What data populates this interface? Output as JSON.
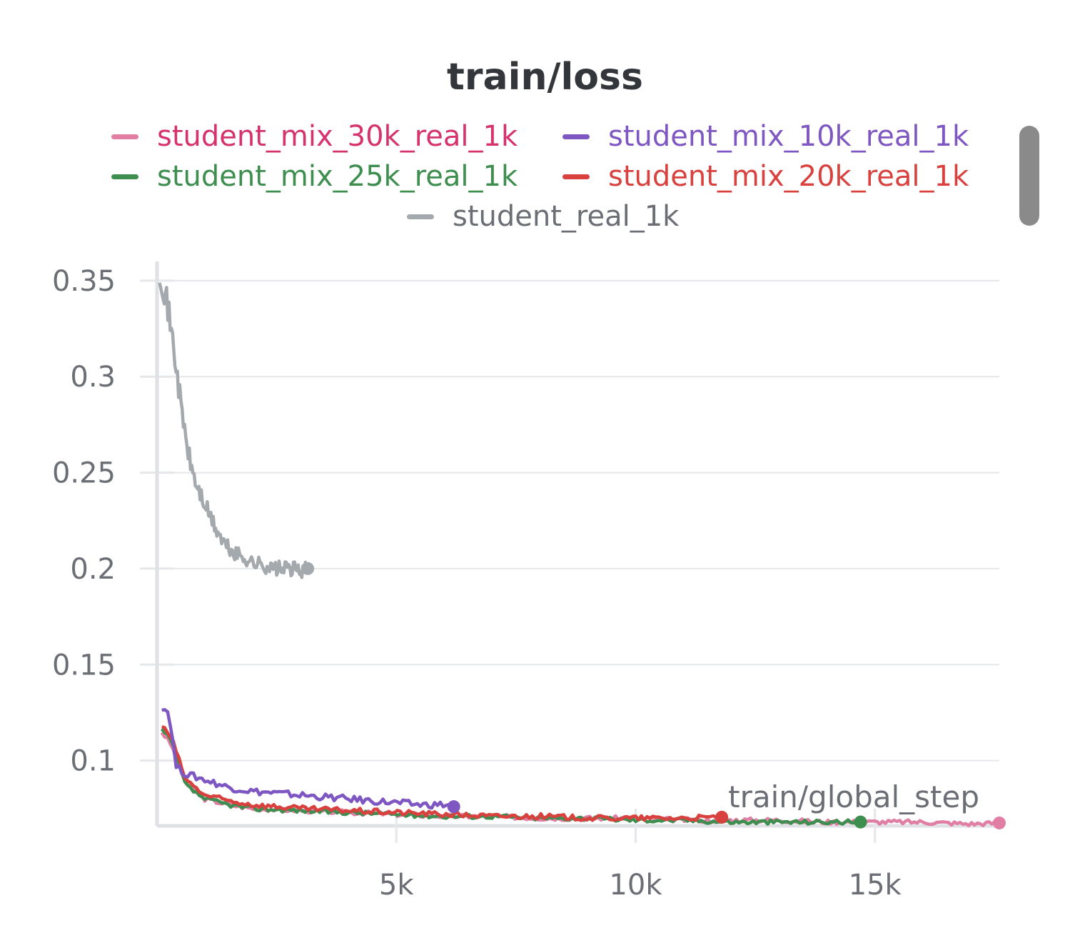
{
  "chart_data": {
    "type": "line",
    "title": "train/loss",
    "xlabel": "train/global_step",
    "ylabel": "",
    "xlim": [
      0,
      17600
    ],
    "ylim": [
      0.066,
      0.36
    ],
    "x_ticks": [
      5000,
      10000,
      15000
    ],
    "x_tick_labels": [
      "5k",
      "10k",
      "15k"
    ],
    "y_ticks": [
      0.1,
      0.15,
      0.2,
      0.25,
      0.3,
      0.35
    ],
    "y_tick_labels": [
      "0.1",
      "0.15",
      "0.2",
      "0.25",
      "0.3",
      "0.35"
    ],
    "grid": true,
    "legend_position": "top",
    "series": [
      {
        "name": "student_mix_30k_real_1k",
        "color": "#e07fa3",
        "label_color": "#d6336c",
        "x": [
          100,
          300,
          600,
          1000,
          1500,
          2000,
          3000,
          4000,
          5000,
          6000,
          7000,
          8000,
          9000,
          10000,
          11000,
          12000,
          13000,
          14000,
          15000,
          16000,
          17000,
          17600
        ],
        "y": [
          0.115,
          0.108,
          0.088,
          0.08,
          0.077,
          0.075,
          0.074,
          0.073,
          0.072,
          0.071,
          0.071,
          0.07,
          0.07,
          0.07,
          0.069,
          0.069,
          0.069,
          0.068,
          0.068,
          0.068,
          0.067,
          0.0675
        ]
      },
      {
        "name": "student_mix_10k_real_1k",
        "color": "#7e57c2",
        "label_color": "#7e57c2",
        "x": [
          100,
          250,
          400,
          600,
          1000,
          1500,
          2000,
          2500,
          3000,
          3500,
          4000,
          4500,
          5000,
          5500,
          6000,
          6200
        ],
        "y": [
          0.128,
          0.125,
          0.097,
          0.093,
          0.09,
          0.086,
          0.084,
          0.083,
          0.082,
          0.081,
          0.08,
          0.079,
          0.078,
          0.077,
          0.077,
          0.076
        ]
      },
      {
        "name": "student_mix_25k_real_1k",
        "color": "#3e8e50",
        "label_color": "#3e8e50",
        "x": [
          100,
          300,
          600,
          1000,
          1500,
          2000,
          3000,
          4000,
          5000,
          6000,
          7000,
          8000,
          9000,
          10000,
          11000,
          12000,
          13000,
          14000,
          14700
        ],
        "y": [
          0.116,
          0.11,
          0.087,
          0.08,
          0.077,
          0.075,
          0.074,
          0.073,
          0.072,
          0.071,
          0.071,
          0.07,
          0.07,
          0.069,
          0.069,
          0.068,
          0.068,
          0.068,
          0.068
        ]
      },
      {
        "name": "student_mix_20k_real_1k",
        "color": "#d9413f",
        "label_color": "#d9413f",
        "x": [
          100,
          300,
          600,
          1000,
          1500,
          2000,
          3000,
          4000,
          5000,
          6000,
          7000,
          8000,
          9000,
          10000,
          11000,
          11800
        ],
        "y": [
          0.118,
          0.112,
          0.09,
          0.082,
          0.079,
          0.077,
          0.075,
          0.074,
          0.073,
          0.072,
          0.071,
          0.071,
          0.07,
          0.07,
          0.07,
          0.0705
        ]
      },
      {
        "name": "student_real_1k",
        "color": "#a4a9ad",
        "label_color": "#6b6e75",
        "x": [
          50,
          200,
          350,
          500,
          650,
          800,
          1000,
          1200,
          1400,
          1600,
          1800,
          2000,
          2200,
          2400,
          2600,
          2800,
          3000,
          3150
        ],
        "y": [
          0.356,
          0.34,
          0.315,
          0.285,
          0.26,
          0.245,
          0.233,
          0.222,
          0.213,
          0.208,
          0.206,
          0.203,
          0.202,
          0.2,
          0.2,
          0.2,
          0.199,
          0.2
        ]
      }
    ]
  }
}
